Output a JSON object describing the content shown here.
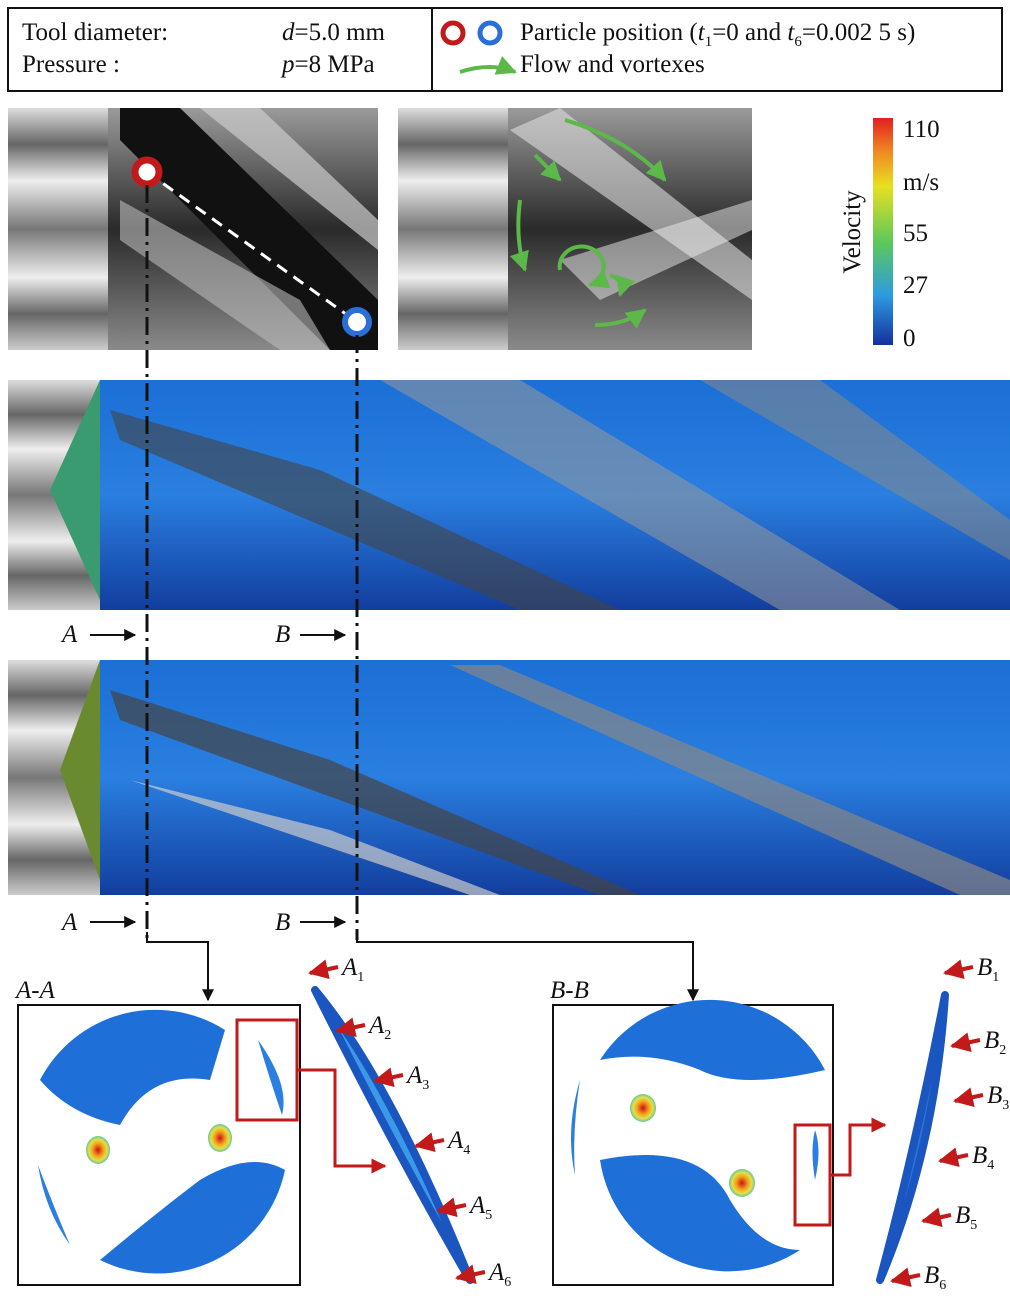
{
  "header": {
    "rows": [
      {
        "label": "Tool diameter:",
        "symbol": "d",
        "value": "=5.0 mm"
      },
      {
        "label": "Pressure :",
        "symbol": "p",
        "value": "=8 MPa"
      }
    ],
    "particle": [
      "Particle position (",
      "t",
      "1",
      "=0 and ",
      "t",
      "6",
      "=0.002 5 s)"
    ],
    "flow": "Flow and vortexes"
  },
  "colorbar": {
    "title": "Velocity",
    "unit": "m/s",
    "ticks": [
      110,
      55,
      27,
      0
    ]
  },
  "cut_labels_upper": [
    "A",
    "B"
  ],
  "cut_labels_lower": [
    "A",
    "B"
  ],
  "section_titles": [
    "A-A",
    "B-B"
  ],
  "points_a": [
    {
      "letter": "A",
      "sub": "1"
    },
    {
      "letter": "A",
      "sub": "2"
    },
    {
      "letter": "A",
      "sub": "3"
    },
    {
      "letter": "A",
      "sub": "4"
    },
    {
      "letter": "A",
      "sub": "5"
    },
    {
      "letter": "A",
      "sub": "6"
    }
  ],
  "points_b": [
    {
      "letter": "B",
      "sub": "1"
    },
    {
      "letter": "B",
      "sub": "2"
    },
    {
      "letter": "B",
      "sub": "3"
    },
    {
      "letter": "B",
      "sub": "4"
    },
    {
      "letter": "B",
      "sub": "5"
    },
    {
      "letter": "B",
      "sub": "6"
    }
  ]
}
